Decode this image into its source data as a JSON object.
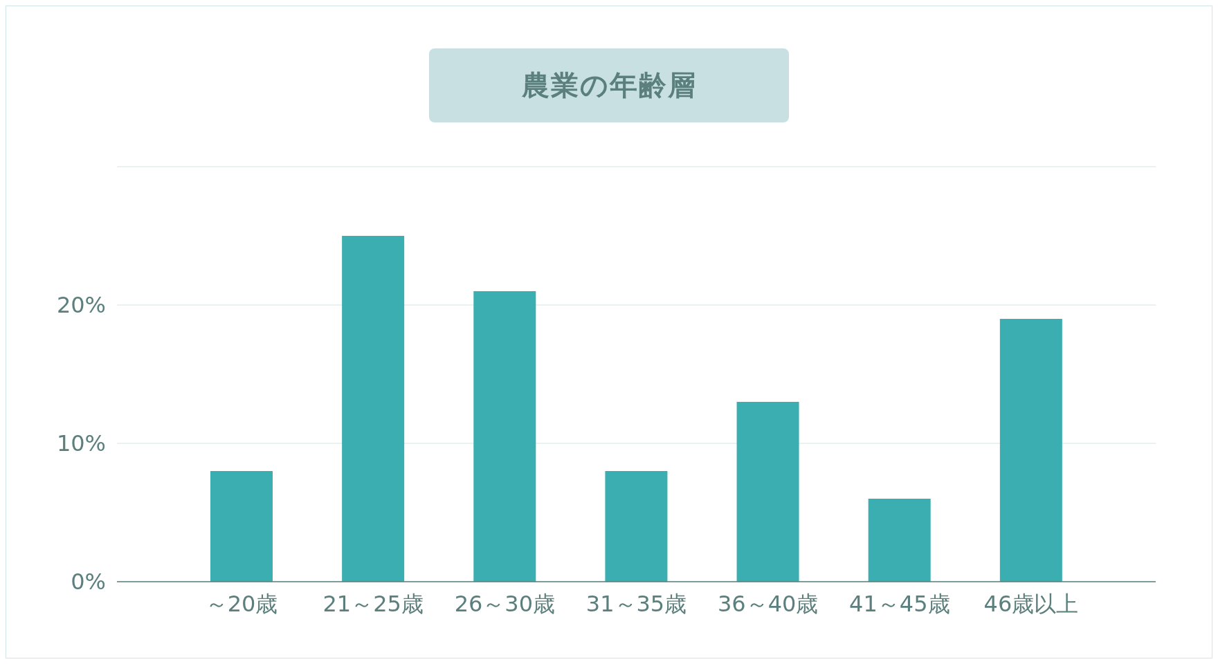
{
  "chart_data": {
    "type": "bar",
    "title": "農業の年齢層",
    "categories": [
      "～20歳",
      "21～25歳",
      "26～30歳",
      "31～35歳",
      "36～40歳",
      "41～45歳",
      "46歳以上"
    ],
    "values": [
      8,
      25,
      21,
      8,
      13,
      6,
      19
    ],
    "color": "#3aaeb1",
    "ylim": [
      0,
      30
    ],
    "yticks": [
      {
        "value": 0,
        "label": "0%"
      },
      {
        "value": 10,
        "label": "10%"
      },
      {
        "value": 20,
        "label": "20%"
      }
    ],
    "grid": "y",
    "legend": false
  }
}
